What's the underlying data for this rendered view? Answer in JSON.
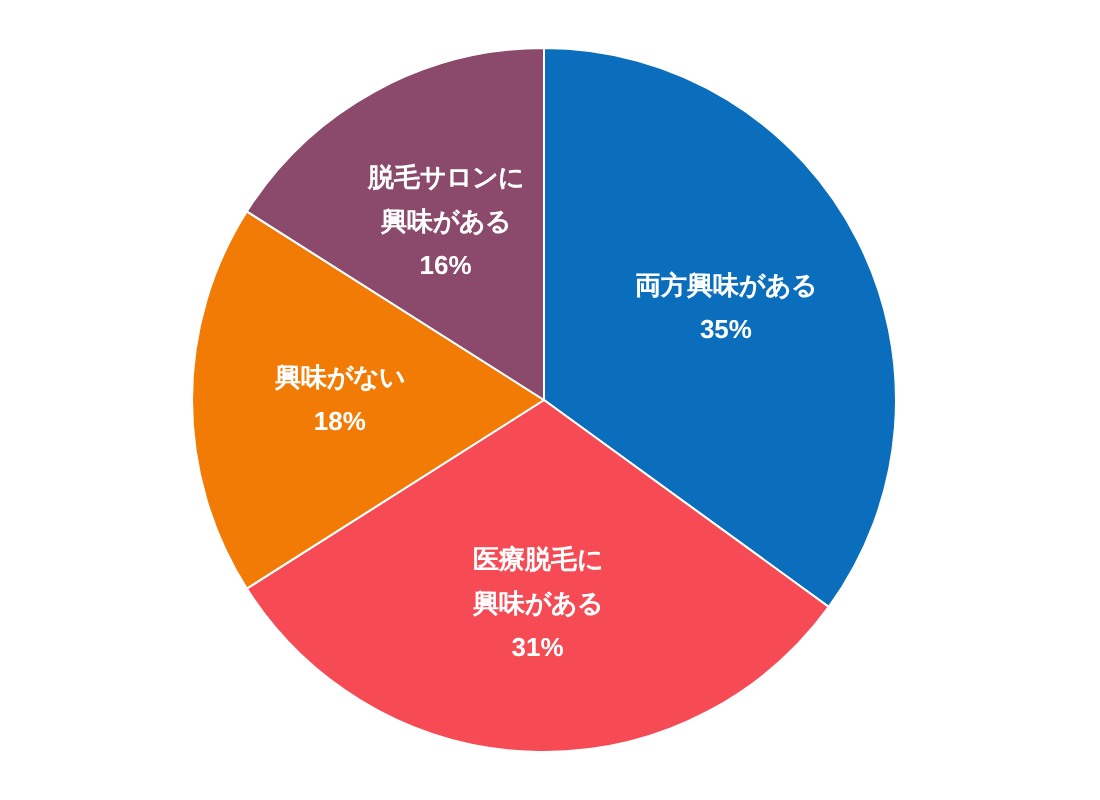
{
  "chart_data": {
    "type": "pie",
    "categories": [
      "両方興味がある",
      "医療脱毛に興味がある",
      "興味がない",
      "脱毛サロンに興味がある"
    ],
    "values": [
      35,
      31,
      18,
      16
    ],
    "value_labels": [
      "35%",
      "31%",
      "18%",
      "16%"
    ],
    "colors": [
      "#0a6ebd",
      "#f64a55",
      "#f27b05",
      "#8b4a6c"
    ],
    "legend": false
  }
}
